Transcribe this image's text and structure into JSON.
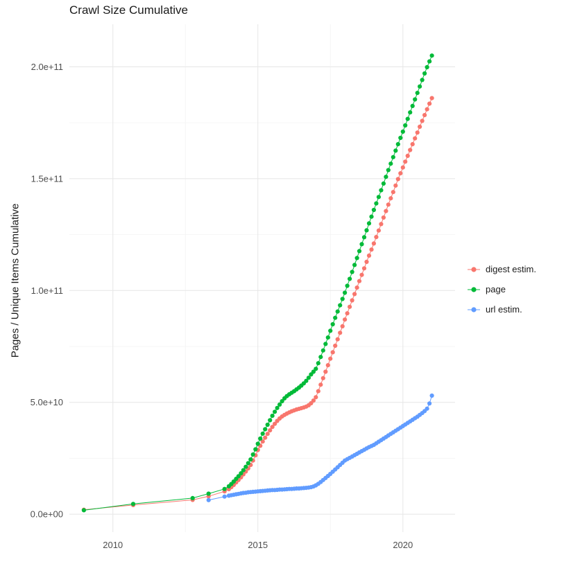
{
  "chart_data": {
    "type": "line",
    "title": "Crawl Size Cumulative",
    "ylabel": "Pages / Unique Items Cumulative",
    "xlabel": "",
    "y_unit": 1000000000,
    "xlim": [
      2008.5,
      2021.8
    ],
    "ylim_e9": [
      -8,
      219
    ],
    "grid": true,
    "grid_major_color": "#E8E8E8",
    "grid_minor_color": "#F3F3F3",
    "background_color": "#FFFFFF",
    "legend_position": "right",
    "yticks": [
      {
        "v": 0,
        "label": "0.0e+00"
      },
      {
        "v": 50,
        "label": "5.0e+10"
      },
      {
        "v": 100,
        "label": "1.0e+11"
      },
      {
        "v": 150,
        "label": "1.5e+11"
      },
      {
        "v": 200,
        "label": "2.0e+11"
      }
    ],
    "yticks_minor": [
      25,
      75,
      125,
      175
    ],
    "xticks": [
      {
        "v": 2010,
        "label": "2010"
      },
      {
        "v": 2015,
        "label": "2015"
      },
      {
        "v": 2020,
        "label": "2020"
      }
    ],
    "xticks_minor": [
      2012.5,
      2017.5
    ],
    "series": [
      {
        "name": "digest estim.",
        "color": "#F8766D",
        "points": [
          [
            2009.0,
            2.0
          ],
          [
            2010.7,
            4.1
          ],
          [
            2012.75,
            6.4
          ],
          [
            2013.3,
            8.0
          ],
          [
            2013.85,
            10.2
          ],
          [
            2014.0,
            11.2
          ],
          [
            2014.083,
            12.1
          ],
          [
            2014.167,
            13.1
          ],
          [
            2014.25,
            14.2
          ],
          [
            2014.333,
            15.3
          ],
          [
            2014.417,
            16.5
          ],
          [
            2014.5,
            17.8
          ],
          [
            2014.583,
            19.1
          ],
          [
            2014.667,
            20.5
          ],
          [
            2014.75,
            22.0
          ],
          [
            2014.833,
            24.0
          ],
          [
            2014.917,
            26.3
          ],
          [
            2015.0,
            28.7
          ],
          [
            2015.083,
            30.6
          ],
          [
            2015.167,
            32.5
          ],
          [
            2015.25,
            34.2
          ],
          [
            2015.333,
            35.9
          ],
          [
            2015.417,
            37.5
          ],
          [
            2015.5,
            39.0
          ],
          [
            2015.583,
            40.4
          ],
          [
            2015.667,
            41.7
          ],
          [
            2015.75,
            42.8
          ],
          [
            2015.833,
            43.7
          ],
          [
            2015.917,
            44.4
          ],
          [
            2016.0,
            45.0
          ],
          [
            2016.083,
            45.5
          ],
          [
            2016.167,
            46.0
          ],
          [
            2016.25,
            46.4
          ],
          [
            2016.333,
            46.8
          ],
          [
            2016.417,
            47.1
          ],
          [
            2016.5,
            47.4
          ],
          [
            2016.583,
            47.7
          ],
          [
            2016.667,
            48.1
          ],
          [
            2016.75,
            48.7
          ],
          [
            2016.833,
            49.6
          ],
          [
            2016.917,
            50.8
          ],
          [
            2017.0,
            52.3
          ],
          [
            2017.083,
            55.0
          ],
          [
            2017.167,
            57.9
          ],
          [
            2017.25,
            60.8
          ],
          [
            2017.333,
            63.7
          ],
          [
            2017.417,
            66.6
          ],
          [
            2017.5,
            69.5
          ],
          [
            2017.583,
            72.4
          ],
          [
            2017.667,
            75.3
          ],
          [
            2017.75,
            78.2
          ],
          [
            2017.833,
            81.1
          ],
          [
            2017.917,
            84.0
          ],
          [
            2018.0,
            87.0
          ],
          [
            2018.083,
            89.8
          ],
          [
            2018.167,
            92.7
          ],
          [
            2018.25,
            95.6
          ],
          [
            2018.333,
            98.4
          ],
          [
            2018.417,
            101.3
          ],
          [
            2018.5,
            104.2
          ],
          [
            2018.583,
            107.0
          ],
          [
            2018.667,
            109.9
          ],
          [
            2018.75,
            112.8
          ],
          [
            2018.833,
            115.6
          ],
          [
            2018.917,
            118.3
          ],
          [
            2019.0,
            121.0
          ],
          [
            2019.083,
            123.9
          ],
          [
            2019.167,
            126.8
          ],
          [
            2019.25,
            129.7
          ],
          [
            2019.333,
            132.6
          ],
          [
            2019.417,
            135.5
          ],
          [
            2019.5,
            138.4
          ],
          [
            2019.583,
            141.2
          ],
          [
            2019.667,
            144.0
          ],
          [
            2019.75,
            146.9
          ],
          [
            2019.833,
            149.8
          ],
          [
            2019.917,
            152.4
          ],
          [
            2020.0,
            155.0
          ],
          [
            2020.083,
            157.6
          ],
          [
            2020.167,
            160.2
          ],
          [
            2020.25,
            162.8
          ],
          [
            2020.333,
            165.4
          ],
          [
            2020.417,
            168.0
          ],
          [
            2020.5,
            170.6
          ],
          [
            2020.583,
            173.2
          ],
          [
            2020.667,
            175.8
          ],
          [
            2020.75,
            178.4
          ],
          [
            2020.833,
            181.0
          ],
          [
            2020.917,
            183.5
          ],
          [
            2021.0,
            186.0
          ]
        ]
      },
      {
        "name": "page",
        "color": "#00BA38",
        "points": [
          [
            2009.0,
            1.8
          ],
          [
            2010.7,
            4.6
          ],
          [
            2012.75,
            7.2
          ],
          [
            2013.3,
            9.2
          ],
          [
            2013.85,
            11.3
          ],
          [
            2014.0,
            12.5
          ],
          [
            2014.083,
            13.5
          ],
          [
            2014.167,
            14.6
          ],
          [
            2014.25,
            15.8
          ],
          [
            2014.333,
            17.0
          ],
          [
            2014.417,
            18.3
          ],
          [
            2014.5,
            19.7
          ],
          [
            2014.583,
            21.2
          ],
          [
            2014.667,
            22.8
          ],
          [
            2014.75,
            24.5
          ],
          [
            2014.833,
            26.7
          ],
          [
            2014.917,
            29.0
          ],
          [
            2015.0,
            31.5
          ],
          [
            2015.083,
            33.8
          ],
          [
            2015.167,
            36.0
          ],
          [
            2015.25,
            38.0
          ],
          [
            2015.333,
            40.0
          ],
          [
            2015.417,
            42.0
          ],
          [
            2015.5,
            44.0
          ],
          [
            2015.583,
            45.8
          ],
          [
            2015.667,
            47.5
          ],
          [
            2015.75,
            49.0
          ],
          [
            2015.833,
            50.5
          ],
          [
            2015.917,
            51.8
          ],
          [
            2016.0,
            52.8
          ],
          [
            2016.083,
            53.6
          ],
          [
            2016.167,
            54.3
          ],
          [
            2016.25,
            55.0
          ],
          [
            2016.333,
            55.8
          ],
          [
            2016.417,
            56.6
          ],
          [
            2016.5,
            57.5
          ],
          [
            2016.583,
            58.5
          ],
          [
            2016.667,
            59.6
          ],
          [
            2016.75,
            61.0
          ],
          [
            2016.833,
            62.5
          ],
          [
            2016.917,
            63.7
          ],
          [
            2017.0,
            65.0
          ],
          [
            2017.083,
            67.5
          ],
          [
            2017.167,
            70.3
          ],
          [
            2017.25,
            73.2
          ],
          [
            2017.333,
            76.1
          ],
          [
            2017.417,
            79.0
          ],
          [
            2017.5,
            82.0
          ],
          [
            2017.583,
            84.9
          ],
          [
            2017.667,
            87.8
          ],
          [
            2017.75,
            90.6
          ],
          [
            2017.833,
            93.4
          ],
          [
            2017.917,
            96.2
          ],
          [
            2018.0,
            99.0
          ],
          [
            2018.083,
            102.1
          ],
          [
            2018.167,
            105.2
          ],
          [
            2018.25,
            108.3
          ],
          [
            2018.333,
            111.4
          ],
          [
            2018.417,
            114.5
          ],
          [
            2018.5,
            117.6
          ],
          [
            2018.583,
            120.7
          ],
          [
            2018.667,
            123.8
          ],
          [
            2018.75,
            126.9
          ],
          [
            2018.833,
            130.0
          ],
          [
            2018.917,
            133.0
          ],
          [
            2019.0,
            136.0
          ],
          [
            2019.083,
            138.9
          ],
          [
            2019.167,
            141.8
          ],
          [
            2019.25,
            144.8
          ],
          [
            2019.333,
            147.8
          ],
          [
            2019.417,
            150.8
          ],
          [
            2019.5,
            153.8
          ],
          [
            2019.583,
            156.7
          ],
          [
            2019.667,
            159.6
          ],
          [
            2019.75,
            162.5
          ],
          [
            2019.833,
            165.4
          ],
          [
            2019.917,
            168.2
          ],
          [
            2020.0,
            171.0
          ],
          [
            2020.083,
            173.8
          ],
          [
            2020.167,
            176.7
          ],
          [
            2020.25,
            179.6
          ],
          [
            2020.333,
            182.5
          ],
          [
            2020.417,
            185.4
          ],
          [
            2020.5,
            188.3
          ],
          [
            2020.583,
            191.2
          ],
          [
            2020.667,
            194.1
          ],
          [
            2020.75,
            197.0
          ],
          [
            2020.833,
            199.8
          ],
          [
            2020.917,
            202.4
          ],
          [
            2021.0,
            205.0
          ]
        ]
      },
      {
        "name": "url estim.",
        "color": "#619CFF",
        "points": [
          [
            2013.3,
            6.3
          ],
          [
            2013.85,
            7.9
          ],
          [
            2014.0,
            8.3
          ],
          [
            2014.083,
            8.5
          ],
          [
            2014.167,
            8.7
          ],
          [
            2014.25,
            8.9
          ],
          [
            2014.333,
            9.1
          ],
          [
            2014.417,
            9.3
          ],
          [
            2014.5,
            9.5
          ],
          [
            2014.583,
            9.6
          ],
          [
            2014.667,
            9.8
          ],
          [
            2014.75,
            9.9
          ],
          [
            2014.833,
            10.0
          ],
          [
            2014.917,
            10.1
          ],
          [
            2015.0,
            10.2
          ],
          [
            2015.083,
            10.3
          ],
          [
            2015.167,
            10.4
          ],
          [
            2015.25,
            10.5
          ],
          [
            2015.333,
            10.6
          ],
          [
            2015.417,
            10.7
          ],
          [
            2015.5,
            10.8
          ],
          [
            2015.583,
            10.8
          ],
          [
            2015.667,
            10.9
          ],
          [
            2015.75,
            11.0
          ],
          [
            2015.833,
            11.0
          ],
          [
            2015.917,
            11.1
          ],
          [
            2016.0,
            11.2
          ],
          [
            2016.083,
            11.3
          ],
          [
            2016.167,
            11.3
          ],
          [
            2016.25,
            11.4
          ],
          [
            2016.333,
            11.5
          ],
          [
            2016.417,
            11.5
          ],
          [
            2016.5,
            11.6
          ],
          [
            2016.583,
            11.7
          ],
          [
            2016.667,
            11.8
          ],
          [
            2016.75,
            11.9
          ],
          [
            2016.833,
            12.1
          ],
          [
            2016.917,
            12.4
          ],
          [
            2017.0,
            12.9
          ],
          [
            2017.083,
            13.6
          ],
          [
            2017.167,
            14.4
          ],
          [
            2017.25,
            15.3
          ],
          [
            2017.333,
            16.2
          ],
          [
            2017.417,
            17.1
          ],
          [
            2017.5,
            18.0
          ],
          [
            2017.583,
            19.0
          ],
          [
            2017.667,
            20.0
          ],
          [
            2017.75,
            21.0
          ],
          [
            2017.833,
            22.0
          ],
          [
            2017.917,
            23.0
          ],
          [
            2018.0,
            24.0
          ],
          [
            2018.083,
            24.6
          ],
          [
            2018.167,
            25.2
          ],
          [
            2018.25,
            25.8
          ],
          [
            2018.333,
            26.4
          ],
          [
            2018.417,
            27.0
          ],
          [
            2018.5,
            27.6
          ],
          [
            2018.583,
            28.2
          ],
          [
            2018.667,
            28.8
          ],
          [
            2018.75,
            29.4
          ],
          [
            2018.833,
            30.0
          ],
          [
            2018.917,
            30.5
          ],
          [
            2019.0,
            31.0
          ],
          [
            2019.083,
            31.7
          ],
          [
            2019.167,
            32.4
          ],
          [
            2019.25,
            33.1
          ],
          [
            2019.333,
            33.8
          ],
          [
            2019.417,
            34.5
          ],
          [
            2019.5,
            35.2
          ],
          [
            2019.583,
            35.9
          ],
          [
            2019.667,
            36.6
          ],
          [
            2019.75,
            37.3
          ],
          [
            2019.833,
            38.0
          ],
          [
            2019.917,
            38.7
          ],
          [
            2020.0,
            39.4
          ],
          [
            2020.083,
            40.1
          ],
          [
            2020.167,
            40.8
          ],
          [
            2020.25,
            41.5
          ],
          [
            2020.333,
            42.2
          ],
          [
            2020.417,
            42.9
          ],
          [
            2020.5,
            43.6
          ],
          [
            2020.583,
            44.4
          ],
          [
            2020.667,
            45.2
          ],
          [
            2020.75,
            46.1
          ],
          [
            2020.833,
            47.2
          ],
          [
            2020.917,
            49.5
          ],
          [
            2021.0,
            53.0
          ]
        ]
      }
    ]
  }
}
